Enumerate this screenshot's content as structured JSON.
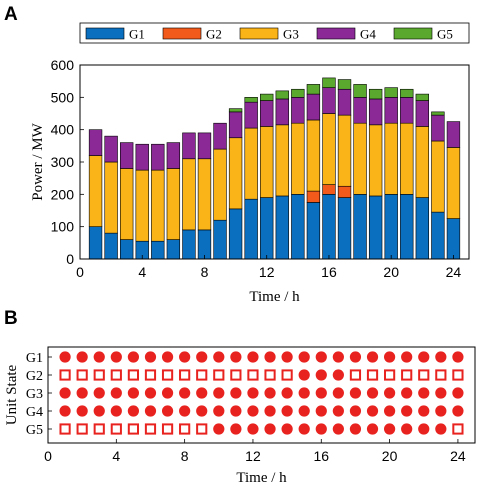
{
  "panels": [
    {
      "label": "A"
    },
    {
      "label": "B"
    }
  ],
  "colors": {
    "G1": "#0b6fbf",
    "G2": "#f25a1c",
    "G3": "#fbb418",
    "G4": "#8b2a97",
    "G5": "#5aa82e",
    "marker": "#e8231f"
  },
  "chart_data": [
    {
      "type": "bar",
      "stacked": true,
      "xlabel": "Time / h",
      "ylabel": "Power / MW",
      "xlim": [
        0,
        25
      ],
      "ylim": [
        0,
        600
      ],
      "xticks": [
        0,
        4,
        8,
        12,
        16,
        20,
        24
      ],
      "yticks": [
        0,
        100,
        200,
        300,
        400,
        500,
        600
      ],
      "legend": "top",
      "categories": [
        1,
        2,
        3,
        4,
        5,
        6,
        7,
        8,
        9,
        10,
        11,
        12,
        13,
        14,
        15,
        16,
        17,
        18,
        19,
        20,
        21,
        22,
        23,
        24
      ],
      "series": [
        {
          "name": "G1",
          "values": [
            100,
            80,
            60,
            55,
            55,
            60,
            90,
            90,
            120,
            155,
            185,
            190,
            195,
            200,
            175,
            200,
            190,
            200,
            195,
            200,
            200,
            190,
            145,
            125
          ]
        },
        {
          "name": "G2",
          "values": [
            0,
            0,
            0,
            0,
            0,
            0,
            0,
            0,
            0,
            0,
            0,
            0,
            0,
            0,
            35,
            30,
            35,
            0,
            0,
            0,
            0,
            0,
            0,
            0
          ]
        },
        {
          "name": "G3",
          "values": [
            220,
            220,
            220,
            220,
            220,
            220,
            220,
            220,
            220,
            220,
            220,
            220,
            220,
            220,
            220,
            220,
            220,
            220,
            220,
            220,
            220,
            220,
            220,
            220
          ]
        },
        {
          "name": "G4",
          "values": [
            80,
            80,
            80,
            80,
            80,
            80,
            80,
            80,
            80,
            80,
            80,
            80,
            80,
            80,
            80,
            80,
            80,
            80,
            80,
            80,
            80,
            80,
            80,
            80
          ]
        },
        {
          "name": "G5",
          "values": [
            0,
            0,
            0,
            0,
            0,
            0,
            0,
            0,
            0,
            10,
            15,
            20,
            25,
            25,
            30,
            30,
            30,
            40,
            30,
            30,
            25,
            20,
            10,
            0
          ]
        }
      ]
    },
    {
      "type": "scatter",
      "xlabel": "Time / h",
      "ylabel": "Unit State",
      "xlim": [
        0,
        25
      ],
      "xticks": [
        0,
        4,
        8,
        12,
        16,
        20,
        24
      ],
      "units": [
        "G1",
        "G2",
        "G3",
        "G4",
        "G5"
      ],
      "hours": [
        1,
        2,
        3,
        4,
        5,
        6,
        7,
        8,
        9,
        10,
        11,
        12,
        13,
        14,
        15,
        16,
        17,
        18,
        19,
        20,
        21,
        22,
        23,
        24
      ],
      "legend_note": "filled circle = on, open square = off",
      "states": [
        [
          1,
          1,
          1,
          1,
          1,
          1,
          1,
          1,
          1,
          1,
          1,
          1,
          1,
          1,
          1,
          1,
          1,
          1,
          1,
          1,
          1,
          1,
          1,
          1
        ],
        [
          0,
          0,
          0,
          0,
          0,
          0,
          0,
          0,
          0,
          0,
          0,
          0,
          0,
          0,
          1,
          1,
          1,
          0,
          0,
          0,
          0,
          0,
          0,
          0
        ],
        [
          1,
          1,
          1,
          1,
          1,
          1,
          1,
          1,
          1,
          1,
          1,
          1,
          1,
          1,
          1,
          1,
          1,
          1,
          1,
          1,
          1,
          1,
          1,
          1
        ],
        [
          1,
          1,
          1,
          1,
          1,
          1,
          1,
          1,
          1,
          1,
          1,
          1,
          1,
          1,
          1,
          1,
          1,
          1,
          1,
          1,
          1,
          1,
          1,
          1
        ],
        [
          0,
          0,
          0,
          0,
          0,
          0,
          0,
          0,
          0,
          1,
          1,
          1,
          1,
          1,
          1,
          1,
          1,
          1,
          1,
          1,
          1,
          1,
          1,
          0
        ]
      ]
    }
  ]
}
